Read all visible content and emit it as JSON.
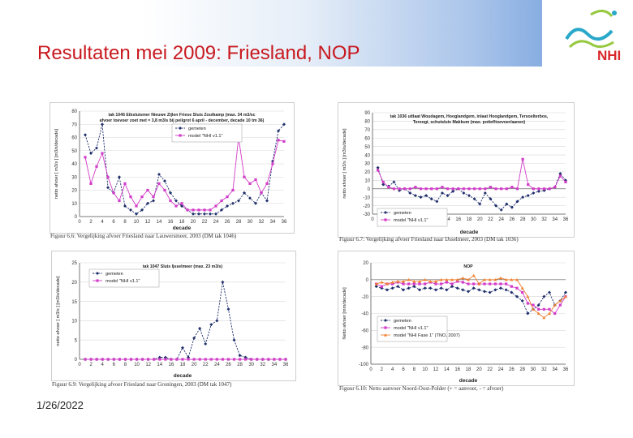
{
  "title": "Resultaten mei 2009: Friesland, NOP",
  "date": "1/26/2022",
  "logo": {
    "text": "NHI",
    "colors": {
      "text": "#d9282a",
      "wave1": "#29a8c9",
      "wave2": "#96c940"
    }
  },
  "colors": {
    "title": "#c8181e",
    "gemeten": "#1f2f6b",
    "model": "#d23cc8",
    "model2": "#f08030"
  },
  "chart_data": [
    {
      "type": "line",
      "title": [
        "tak 1046 Eibsluismer Nieuwe Zijlen Friese Sluis Zoutkamp (max. 34 m3/sc",
        "afvoer toevoer zoet met = 3,8 m3/s bij peilgrot 6 april - december, decade 10 tm 36)"
      ],
      "xlabel": "decade",
      "ylabel": "netto afvoer [ m3/s ] [m3/s/decade]",
      "xlim": [
        0,
        36
      ],
      "ylim": [
        0,
        80
      ],
      "xticks": [
        0,
        2,
        4,
        6,
        8,
        10,
        12,
        14,
        16,
        18,
        20,
        22,
        24,
        26,
        28,
        30,
        32,
        34,
        36
      ],
      "yticks": [
        0,
        10,
        20,
        30,
        40,
        50,
        60,
        70,
        80
      ],
      "legend": [
        "gemeten",
        "model \"NHI v1.1\""
      ],
      "caption": "Figuur 6.6: Vergelijking afvoer Friesland naar Lauwersmeer, 2003 (DM tak 1046)",
      "x": [
        1,
        2,
        3,
        4,
        5,
        6,
        7,
        8,
        9,
        10,
        11,
        12,
        13,
        14,
        15,
        16,
        17,
        18,
        19,
        20,
        21,
        22,
        23,
        24,
        25,
        26,
        27,
        28,
        29,
        30,
        31,
        32,
        33,
        34,
        35,
        36
      ],
      "series": [
        {
          "name": "gemeten",
          "values": [
            62,
            48,
            52,
            70,
            22,
            18,
            30,
            8,
            5,
            2,
            5,
            10,
            12,
            32,
            27,
            18,
            12,
            8,
            5,
            2,
            2,
            2,
            2,
            2,
            5,
            8,
            10,
            12,
            18,
            14,
            10,
            18,
            12,
            42,
            65,
            70
          ]
        },
        {
          "name": "model \"NHI v1.1\"",
          "values": [
            45,
            25,
            38,
            48,
            30,
            18,
            12,
            25,
            15,
            8,
            15,
            20,
            15,
            25,
            20,
            12,
            8,
            10,
            5,
            5,
            5,
            5,
            5,
            8,
            12,
            15,
            20,
            60,
            30,
            25,
            28,
            18,
            25,
            40,
            58,
            57
          ]
        }
      ]
    },
    {
      "type": "line",
      "title": [
        "tak 1036 uitlaat Woudagem, Hooglandgem, inlaat Hooglandgem, Tersoelterbos,",
        "Teroogi, schutsluis Makkum (max. potief/toevoer/aanen)"
      ],
      "xlabel": "decade",
      "ylabel": "netto afvoer [ m3/s ] [m3/s/decade]",
      "xlim": [
        0,
        36
      ],
      "ylim": [
        -30,
        90
      ],
      "xticks": [
        0,
        2,
        4,
        6,
        8,
        10,
        12,
        14,
        16,
        18,
        20,
        22,
        24,
        26,
        28,
        30,
        32,
        34,
        36
      ],
      "yticks": [
        -30,
        -20,
        -10,
        0,
        10,
        20,
        30,
        40,
        50,
        60,
        70,
        80,
        90
      ],
      "legend": [
        "gemeten",
        "model \"NHI v1.1\""
      ],
      "caption": "Figuur 6.7: Vergelijking afvoer Friesland naar IJsselmeer, 2003 (DM tak 1036)",
      "x": [
        1,
        2,
        3,
        4,
        5,
        6,
        7,
        8,
        9,
        10,
        11,
        12,
        13,
        14,
        15,
        16,
        17,
        18,
        19,
        20,
        21,
        22,
        23,
        24,
        25,
        26,
        27,
        28,
        29,
        30,
        31,
        32,
        33,
        34,
        35,
        36
      ],
      "series": [
        {
          "name": "gemeten",
          "values": [
            25,
            5,
            3,
            8,
            -2,
            0,
            -5,
            -8,
            -10,
            -8,
            -12,
            -15,
            -5,
            -8,
            -3,
            0,
            -5,
            -8,
            -12,
            -18,
            -5,
            -12,
            -20,
            -25,
            -18,
            -22,
            -15,
            -10,
            -8,
            -5,
            -3,
            -2,
            0,
            2,
            18,
            10
          ]
        },
        {
          "name": "model \"NHI v1.1\"",
          "values": [
            22,
            8,
            2,
            0,
            0,
            0,
            0,
            2,
            0,
            0,
            0,
            0,
            2,
            0,
            0,
            0,
            0,
            0,
            0,
            0,
            0,
            2,
            0,
            0,
            0,
            2,
            0,
            35,
            5,
            0,
            0,
            0,
            0,
            2,
            15,
            8
          ]
        }
      ]
    },
    {
      "type": "line",
      "title": [
        "tak 1047 Sluis Ijsselmeer (max. 23 m3/s)"
      ],
      "xlabel": "decade",
      "ylabel": "netto afvoer [ m3/s ] [m3/s/decade]",
      "xlim": [
        0,
        36
      ],
      "ylim": [
        0,
        25
      ],
      "xticks": [
        0,
        2,
        4,
        6,
        8,
        10,
        12,
        14,
        16,
        18,
        20,
        22,
        24,
        26,
        28,
        30,
        32,
        34,
        36
      ],
      "yticks": [
        0,
        5,
        10,
        15,
        20,
        25
      ],
      "legend": [
        "gemeten",
        "model \"NHI v1.1\""
      ],
      "caption": "Figuur 6.9: Vergelijking afvoer Friesland naar Groningen, 2003 (DM tak 1047)",
      "x": [
        1,
        2,
        3,
        4,
        5,
        6,
        7,
        8,
        9,
        10,
        11,
        12,
        13,
        14,
        15,
        16,
        17,
        18,
        19,
        20,
        21,
        22,
        23,
        24,
        25,
        26,
        27,
        28,
        29,
        30,
        31,
        32,
        33,
        34,
        35,
        36
      ],
      "series": [
        {
          "name": "gemeten",
          "values": [
            0,
            0,
            0,
            0,
            0,
            0,
            0,
            0,
            0,
            0,
            0,
            0,
            0,
            0.5,
            0.5,
            0,
            0,
            3,
            0.5,
            5.5,
            8,
            4,
            9,
            10,
            20,
            13,
            5,
            1,
            0.5,
            0,
            0,
            0,
            0,
            0,
            0,
            0
          ]
        },
        {
          "name": "model \"NHI v1.1\"",
          "values": [
            0,
            0,
            0,
            0,
            0,
            0,
            0,
            0,
            0,
            0,
            0,
            0,
            0,
            0,
            0,
            0,
            0,
            0,
            0,
            0,
            0,
            0,
            0,
            0,
            0,
            0,
            0,
            0,
            0,
            0,
            0,
            0,
            0,
            0,
            0,
            0
          ]
        }
      ]
    },
    {
      "type": "line",
      "title": [
        "NOP"
      ],
      "xlabel": "decade",
      "ylabel": "Netto afvoer [mm/decade]",
      "xlim": [
        0,
        36
      ],
      "ylim": [
        -100,
        20
      ],
      "xticks": [
        0,
        2,
        4,
        6,
        8,
        10,
        12,
        14,
        16,
        18,
        20,
        22,
        24,
        26,
        28,
        30,
        32,
        34,
        36
      ],
      "yticks": [
        -100,
        -80,
        -60,
        -40,
        -20,
        0,
        20
      ],
      "legend": [
        "gemeten",
        "model \"NHI v1.1\"",
        "model \"NHI Fase 1\" (TNO, 2007)"
      ],
      "caption": "Figuur 6.10: Netto aanvoer Noord-Oost-Polder (+ = aanvoer, - = afvoer)",
      "x": [
        1,
        2,
        3,
        4,
        5,
        6,
        7,
        8,
        9,
        10,
        11,
        12,
        13,
        14,
        15,
        16,
        17,
        18,
        19,
        20,
        21,
        22,
        23,
        24,
        25,
        26,
        27,
        28,
        29,
        30,
        31,
        32,
        33,
        34,
        35,
        36
      ],
      "series": [
        {
          "name": "gemeten",
          "values": [
            -8,
            -10,
            -12,
            -10,
            -8,
            -12,
            -10,
            -8,
            -12,
            -10,
            -10,
            -12,
            -10,
            -12,
            -8,
            -10,
            -12,
            -14,
            -10,
            -12,
            -14,
            -15,
            -12,
            -10,
            -12,
            -15,
            -20,
            -25,
            -40,
            -35,
            -30,
            -20,
            -15,
            -30,
            -25,
            -15
          ]
        },
        {
          "name": "model \"NHI v1.1\"",
          "values": [
            -5,
            -8,
            -5,
            -5,
            -3,
            -5,
            -5,
            -5,
            -5,
            -5,
            -3,
            -5,
            -5,
            -3,
            -5,
            -2,
            -3,
            -5,
            -5,
            -5,
            -5,
            -5,
            -5,
            -5,
            -5,
            -8,
            -10,
            -15,
            -28,
            -30,
            -35,
            -35,
            -35,
            -40,
            -30,
            -20
          ]
        },
        {
          "name": "model \"NHI Fase 1\" (TNO, 2007)",
          "values": [
            -5,
            -3,
            -5,
            -3,
            -2,
            -2,
            0,
            -2,
            -2,
            0,
            -2,
            -2,
            0,
            0,
            0,
            0,
            2,
            0,
            5,
            -5,
            0,
            0,
            0,
            2,
            0,
            0,
            0,
            -10,
            -20,
            -35,
            -40,
            -45,
            -40,
            -30,
            -25,
            -20
          ]
        }
      ]
    }
  ]
}
